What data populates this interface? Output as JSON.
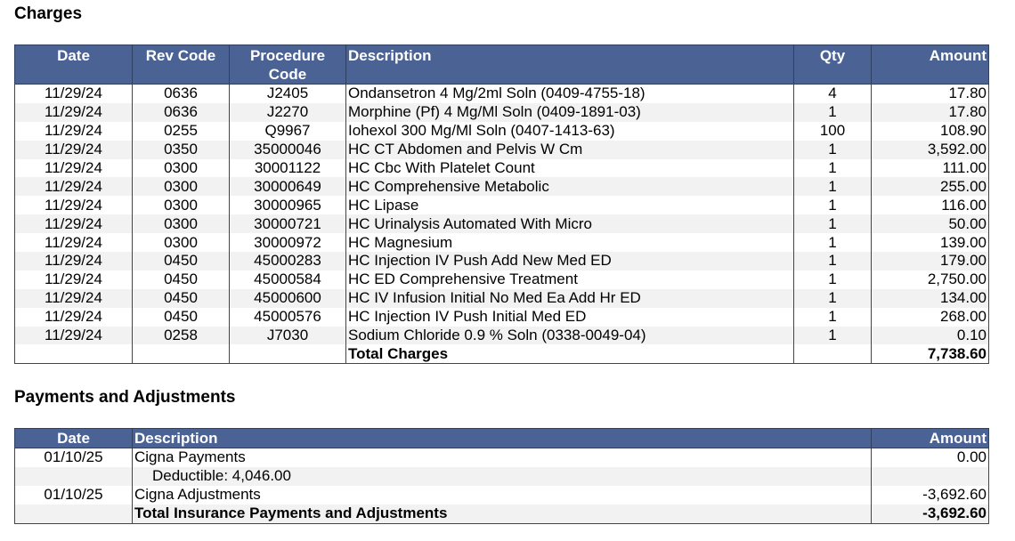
{
  "charges": {
    "title": "Charges",
    "headers": {
      "date": "Date",
      "rev_code": "Rev Code",
      "procedure_code": "Procedure Code",
      "description": "Description",
      "qty": "Qty",
      "amount": "Amount"
    },
    "rows": [
      {
        "date": "11/29/24",
        "rev": "0636",
        "proc": "J2405",
        "desc": "Ondansetron 4 Mg/2ml Soln (0409-4755-18)",
        "qty": "4",
        "amount": "17.80"
      },
      {
        "date": "11/29/24",
        "rev": "0636",
        "proc": "J2270",
        "desc": "Morphine (Pf) 4 Mg/Ml Soln (0409-1891-03)",
        "qty": "1",
        "amount": "17.80"
      },
      {
        "date": "11/29/24",
        "rev": "0255",
        "proc": "Q9967",
        "desc": "Iohexol 300 Mg/Ml Soln (0407-1413-63)",
        "qty": "100",
        "amount": "108.90"
      },
      {
        "date": "11/29/24",
        "rev": "0350",
        "proc": "35000046",
        "desc": "HC CT Abdomen and Pelvis W Cm",
        "qty": "1",
        "amount": "3,592.00"
      },
      {
        "date": "11/29/24",
        "rev": "0300",
        "proc": "30001122",
        "desc": "HC Cbc With Platelet Count",
        "qty": "1",
        "amount": "111.00"
      },
      {
        "date": "11/29/24",
        "rev": "0300",
        "proc": "30000649",
        "desc": "HC Comprehensive Metabolic",
        "qty": "1",
        "amount": "255.00"
      },
      {
        "date": "11/29/24",
        "rev": "0300",
        "proc": "30000965",
        "desc": "HC Lipase",
        "qty": "1",
        "amount": "116.00"
      },
      {
        "date": "11/29/24",
        "rev": "0300",
        "proc": "30000721",
        "desc": "HC Urinalysis Automated With Micro",
        "qty": "1",
        "amount": "50.00"
      },
      {
        "date": "11/29/24",
        "rev": "0300",
        "proc": "30000972",
        "desc": "HC Magnesium",
        "qty": "1",
        "amount": "139.00"
      },
      {
        "date": "11/29/24",
        "rev": "0450",
        "proc": "45000283",
        "desc": "HC Injection IV Push Add New Med ED",
        "qty": "1",
        "amount": "179.00"
      },
      {
        "date": "11/29/24",
        "rev": "0450",
        "proc": "45000584",
        "desc": "HC ED Comprehensive Treatment",
        "qty": "1",
        "amount": "2,750.00"
      },
      {
        "date": "11/29/24",
        "rev": "0450",
        "proc": "45000600",
        "desc": "HC IV Infusion Initial No Med Ea Add Hr ED",
        "qty": "1",
        "amount": "134.00"
      },
      {
        "date": "11/29/24",
        "rev": "0450",
        "proc": "45000576",
        "desc": "HC Injection IV Push Initial Med ED",
        "qty": "1",
        "amount": "268.00"
      },
      {
        "date": "11/29/24",
        "rev": "0258",
        "proc": "J7030",
        "desc": "Sodium Chloride 0.9 % Soln (0338-0049-04)",
        "qty": "1",
        "amount": "0.10"
      }
    ],
    "total": {
      "label": "Total Charges",
      "amount": "7,738.60"
    }
  },
  "payments": {
    "title": "Payments and Adjustments",
    "headers": {
      "date": "Date",
      "description": "Description",
      "amount": "Amount"
    },
    "rows": [
      {
        "date": "01/10/25",
        "desc": "Cigna Payments",
        "amount": "0.00"
      },
      {
        "date": "",
        "desc": "Deductible: 4,046.00",
        "amount": ""
      },
      {
        "date": "01/10/25",
        "desc": "Cigna Adjustments",
        "amount": "-3,692.60"
      }
    ],
    "total": {
      "label": "Total Insurance Payments and Adjustments",
      "amount": "-3,692.60"
    }
  },
  "colors": {
    "header_bg": "#4a6394",
    "header_text": "#ffffff",
    "alt_row": "#f2f2f2"
  }
}
